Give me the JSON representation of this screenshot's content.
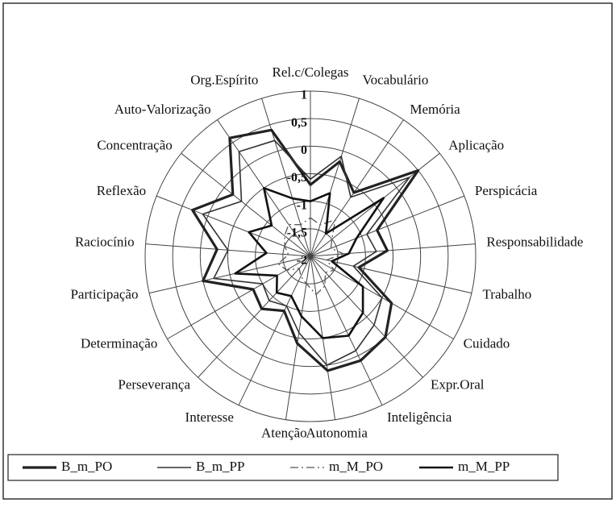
{
  "chart_data": {
    "type": "radar",
    "categories": [
      "Rel.c/Colegas",
      "Vocabulário",
      "Memória",
      "Aplicação",
      "Perspicácia",
      "Responsabilidade",
      "Trabalho",
      "Cuidado",
      "Expr.Oral",
      "Inteligência",
      "Autonomia",
      "Atenção",
      "Interesse",
      "Perseverança",
      "Determinação",
      "Participação",
      "Raciocínio",
      "Reflexão",
      "Concentração",
      "Auto-Valorização",
      "Org.Espírito"
    ],
    "series": [
      {
        "name": "B_m_PO",
        "color": "#222222",
        "values": [
          -0.7,
          -0.2,
          -0.6,
          0.5,
          -0.7,
          -0.6,
          -1.1,
          -0.3,
          0.0,
          0.1,
          0.1,
          -0.4,
          -0.9,
          -0.7,
          -0.8,
          0.0,
          -0.3,
          0.3,
          -0.2,
          0.6,
          0.4
        ]
      },
      {
        "name": "B_m_PP",
        "color": "#333333",
        "values": [
          -0.6,
          -0.1,
          -0.7,
          0.3,
          -0.9,
          -0.8,
          -1.2,
          -0.5,
          -0.3,
          -0.1,
          0.0,
          -0.6,
          -1.0,
          -0.9,
          -1.0,
          -0.2,
          -0.5,
          0.1,
          -0.4,
          0.3,
          0.2
        ]
      },
      {
        "name": "m_M_PO",
        "color": "#555555",
        "values": [
          -1.3,
          -1.4,
          -1.2,
          -1.5,
          -1.6,
          -1.4,
          -1.7,
          -1.5,
          -1.6,
          -1.4,
          -1.3,
          -1.5,
          -1.6,
          -1.7,
          -1.5,
          -1.4,
          -1.6,
          -1.5,
          -1.4,
          -1.3,
          -1.4
        ]
      },
      {
        "name": "m_M_PP",
        "color": "#111111",
        "values": [
          -1.0,
          -0.8,
          -1.5,
          -0.3,
          -1.1,
          -1.3,
          -1.6,
          -0.9,
          -0.6,
          -0.4,
          -0.5,
          -0.9,
          -1.2,
          -1.1,
          -1.3,
          -0.6,
          -1.2,
          -0.8,
          -1.1,
          -0.5,
          -0.9
        ]
      }
    ],
    "ylim": [
      -2,
      1
    ],
    "yticks": [
      -2,
      {
        "value": -1.5,
        "label": "-1,5"
      },
      -1,
      {
        "value": -0.5,
        "label": "-0,5"
      },
      0,
      {
        "value": 0.5,
        "label": "0,5"
      },
      1
    ],
    "grid": true
  }
}
